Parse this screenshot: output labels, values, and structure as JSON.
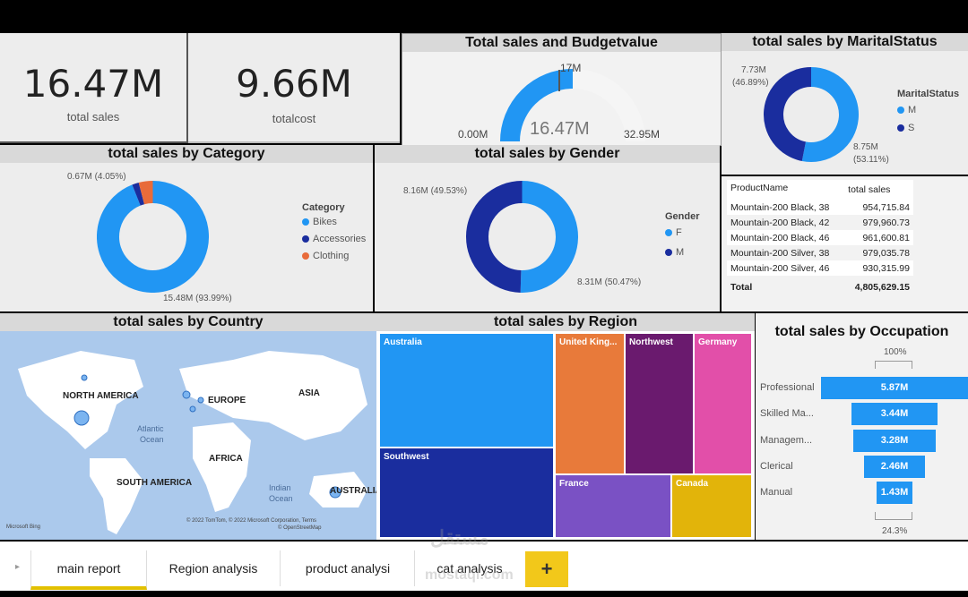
{
  "kpis": {
    "total_sales": {
      "value": "16.47M",
      "label": "total sales"
    },
    "total_cost": {
      "value": "9.66M",
      "label": "totalcost"
    }
  },
  "gauge": {
    "title": "Total sales and Budgetvalue",
    "value": "16.47M",
    "target": "17M",
    "min": "0.00M",
    "max": "32.95M",
    "fraction": 0.5
  },
  "marital": {
    "title": "total sales by MaritalStatus",
    "legend_title": "MaritalStatus",
    "items": [
      {
        "label": "M",
        "color": "#2196f3"
      },
      {
        "label": "S",
        "color": "#1a2d9e"
      }
    ],
    "labels": [
      "7.73M",
      "(46.89%)",
      "8.75M",
      "(53.11%)"
    ],
    "chart_data": {
      "type": "pie",
      "title": "total sales by MaritalStatus",
      "categories": [
        "M",
        "S"
      ],
      "values": [
        8.75,
        7.73
      ],
      "percent": [
        53.11,
        46.89
      ]
    }
  },
  "category": {
    "title": "total sales by Category",
    "legend_title": "Category",
    "items": [
      {
        "label": "Bikes",
        "color": "#2196f3"
      },
      {
        "label": "Accessories",
        "color": "#1a2d9e"
      },
      {
        "label": "Clothing",
        "color": "#e86b3a"
      }
    ],
    "labels": [
      "0.67M (4.05%)",
      "15.48M (93.99%)"
    ],
    "chart_data": {
      "type": "pie",
      "title": "total sales by Category",
      "categories": [
        "Bikes",
        "Accessories",
        "Clothing"
      ],
      "values": [
        15.48,
        0.32,
        0.67
      ],
      "percent": [
        93.99,
        1.96,
        4.05
      ]
    }
  },
  "gender": {
    "title": "total sales by Gender",
    "legend_title": "Gender",
    "items": [
      {
        "label": "F",
        "color": "#2196f3"
      },
      {
        "label": "M",
        "color": "#1a2d9e"
      }
    ],
    "labels": [
      "8.16M (49.53%)",
      "8.31M (50.47%)"
    ],
    "chart_data": {
      "type": "pie",
      "title": "total sales by Gender",
      "categories": [
        "F",
        "M"
      ],
      "values": [
        8.31,
        8.16
      ],
      "percent": [
        50.47,
        49.53
      ]
    }
  },
  "product_table": {
    "headers": [
      "ProductName",
      "total sales"
    ],
    "rows": [
      [
        "Mountain-200 Black, 38",
        "954,715.84"
      ],
      [
        "Mountain-200 Black, 42",
        "979,960.73"
      ],
      [
        "Mountain-200 Black, 46",
        "961,600.81"
      ],
      [
        "Mountain-200 Silver, 38",
        "979,035.78"
      ],
      [
        "Mountain-200 Silver, 46",
        "930,315.99"
      ]
    ],
    "total_label": "Total",
    "total_value": "4,805,629.15"
  },
  "country": {
    "title": "total sales by Country",
    "labels": {
      "na": "NORTH AMERICA",
      "eu": "EUROPE",
      "asia": "ASIA",
      "africa": "AFRICA",
      "sa": "SOUTH AMERICA",
      "aus": "AUSTRALIA",
      "atl1": "Atlantic",
      "atl2": "Ocean",
      "ind1": "Indian",
      "ind2": "Ocean"
    },
    "copyright": "© 2022 TomTom, © 2022 Microsoft Corporation, Terms",
    "copyright2": "© OpenStreetMap",
    "bing": "Microsoft Bing"
  },
  "region": {
    "title": "total sales by Region",
    "cells": [
      "Australia",
      "Southwest",
      "United King...",
      "Northwest",
      "Germany",
      "France",
      "Canada"
    ],
    "chart_data": {
      "type": "treemap",
      "categories": [
        "Australia",
        "Southwest",
        "United Kingdom",
        "Northwest",
        "Germany",
        "France",
        "Canada"
      ]
    }
  },
  "occupation": {
    "title": "total sales by Occupation",
    "top": "100%",
    "bottom": "24.3%",
    "chart_data": {
      "type": "bar",
      "title": "total sales by Occupation",
      "categories": [
        "Professional",
        "Skilled Ma...",
        "Managem...",
        "Clerical",
        "Manual"
      ],
      "values": [
        5.87,
        3.44,
        3.28,
        2.46,
        1.43
      ],
      "labels": [
        "5.87M",
        "3.44M",
        "3.28M",
        "2.46M",
        "1.43M"
      ]
    }
  },
  "tabs": [
    "main report",
    "Region analysis",
    "product analysi",
    "cat analysis"
  ],
  "add_tab": "+",
  "watermark": [
    "مستقل",
    "mostaql.com"
  ]
}
